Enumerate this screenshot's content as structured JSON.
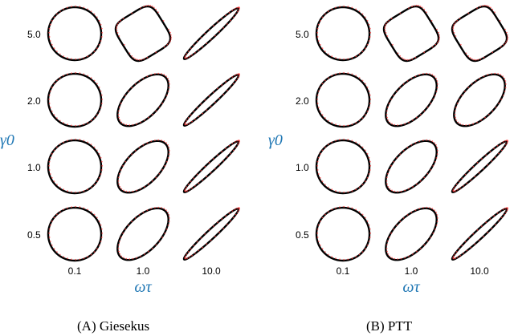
{
  "chart_data": [
    {
      "type": "scatter",
      "kind": "Lissajous stress-strain loops (model: black line, data: red dots)",
      "panel_label": "(A) Giesekus",
      "xlabel": "ωτ",
      "ylabel": "γ0",
      "column_values": [
        "0.1",
        "1.0",
        "10.0"
      ],
      "row_values": [
        "5.0",
        "2.0",
        "1.0",
        "0.5"
      ],
      "colors": {
        "model_line": "#000000",
        "data_points": "#ff3b3b",
        "axis_label": "#1f77b4"
      },
      "loops": [
        {
          "gamma0": "5.0",
          "omega_tau": "0.1",
          "shape": "circle"
        },
        {
          "gamma0": "5.0",
          "omega_tau": "1.0",
          "shape": "rounded-square"
        },
        {
          "gamma0": "5.0",
          "omega_tau": "10.0",
          "shape": "thin-ellipse"
        },
        {
          "gamma0": "2.0",
          "omega_tau": "0.1",
          "shape": "circle"
        },
        {
          "gamma0": "2.0",
          "omega_tau": "1.0",
          "shape": "ellipse"
        },
        {
          "gamma0": "2.0",
          "omega_tau": "10.0",
          "shape": "thin-ellipse"
        },
        {
          "gamma0": "1.0",
          "omega_tau": "0.1",
          "shape": "circle"
        },
        {
          "gamma0": "1.0",
          "omega_tau": "1.0",
          "shape": "ellipse"
        },
        {
          "gamma0": "1.0",
          "omega_tau": "10.0",
          "shape": "thin-ellipse"
        },
        {
          "gamma0": "0.5",
          "omega_tau": "0.1",
          "shape": "circle"
        },
        {
          "gamma0": "0.5",
          "omega_tau": "1.0",
          "shape": "ellipse"
        },
        {
          "gamma0": "0.5",
          "omega_tau": "10.0",
          "shape": "thin-ellipse"
        }
      ]
    },
    {
      "type": "scatter",
      "kind": "Lissajous stress-strain loops (model: black line, data: red dots)",
      "panel_label": "(B) PTT",
      "xlabel": "ωτ",
      "ylabel": "γ0",
      "column_values": [
        "0.1",
        "1.0",
        "10.0"
      ],
      "row_values": [
        "5.0",
        "2.0",
        "1.0",
        "0.5"
      ],
      "colors": {
        "model_line": "#000000",
        "data_points": "#ff3b3b",
        "axis_label": "#1f77b4"
      },
      "loops": [
        {
          "gamma0": "5.0",
          "omega_tau": "0.1",
          "shape": "circle"
        },
        {
          "gamma0": "5.0",
          "omega_tau": "1.0",
          "shape": "rounded-square"
        },
        {
          "gamma0": "5.0",
          "omega_tau": "10.0",
          "shape": "rounded-square"
        },
        {
          "gamma0": "2.0",
          "omega_tau": "0.1",
          "shape": "circle"
        },
        {
          "gamma0": "2.0",
          "omega_tau": "1.0",
          "shape": "ellipse"
        },
        {
          "gamma0": "2.0",
          "omega_tau": "10.0",
          "shape": "ellipse"
        },
        {
          "gamma0": "1.0",
          "omega_tau": "0.1",
          "shape": "circle"
        },
        {
          "gamma0": "1.0",
          "omega_tau": "1.0",
          "shape": "ellipse"
        },
        {
          "gamma0": "1.0",
          "omega_tau": "10.0",
          "shape": "thin-ellipse"
        },
        {
          "gamma0": "0.5",
          "omega_tau": "0.1",
          "shape": "circle"
        },
        {
          "gamma0": "0.5",
          "omega_tau": "1.0",
          "shape": "ellipse"
        },
        {
          "gamma0": "0.5",
          "omega_tau": "10.0",
          "shape": "thin-ellipse"
        }
      ]
    }
  ]
}
